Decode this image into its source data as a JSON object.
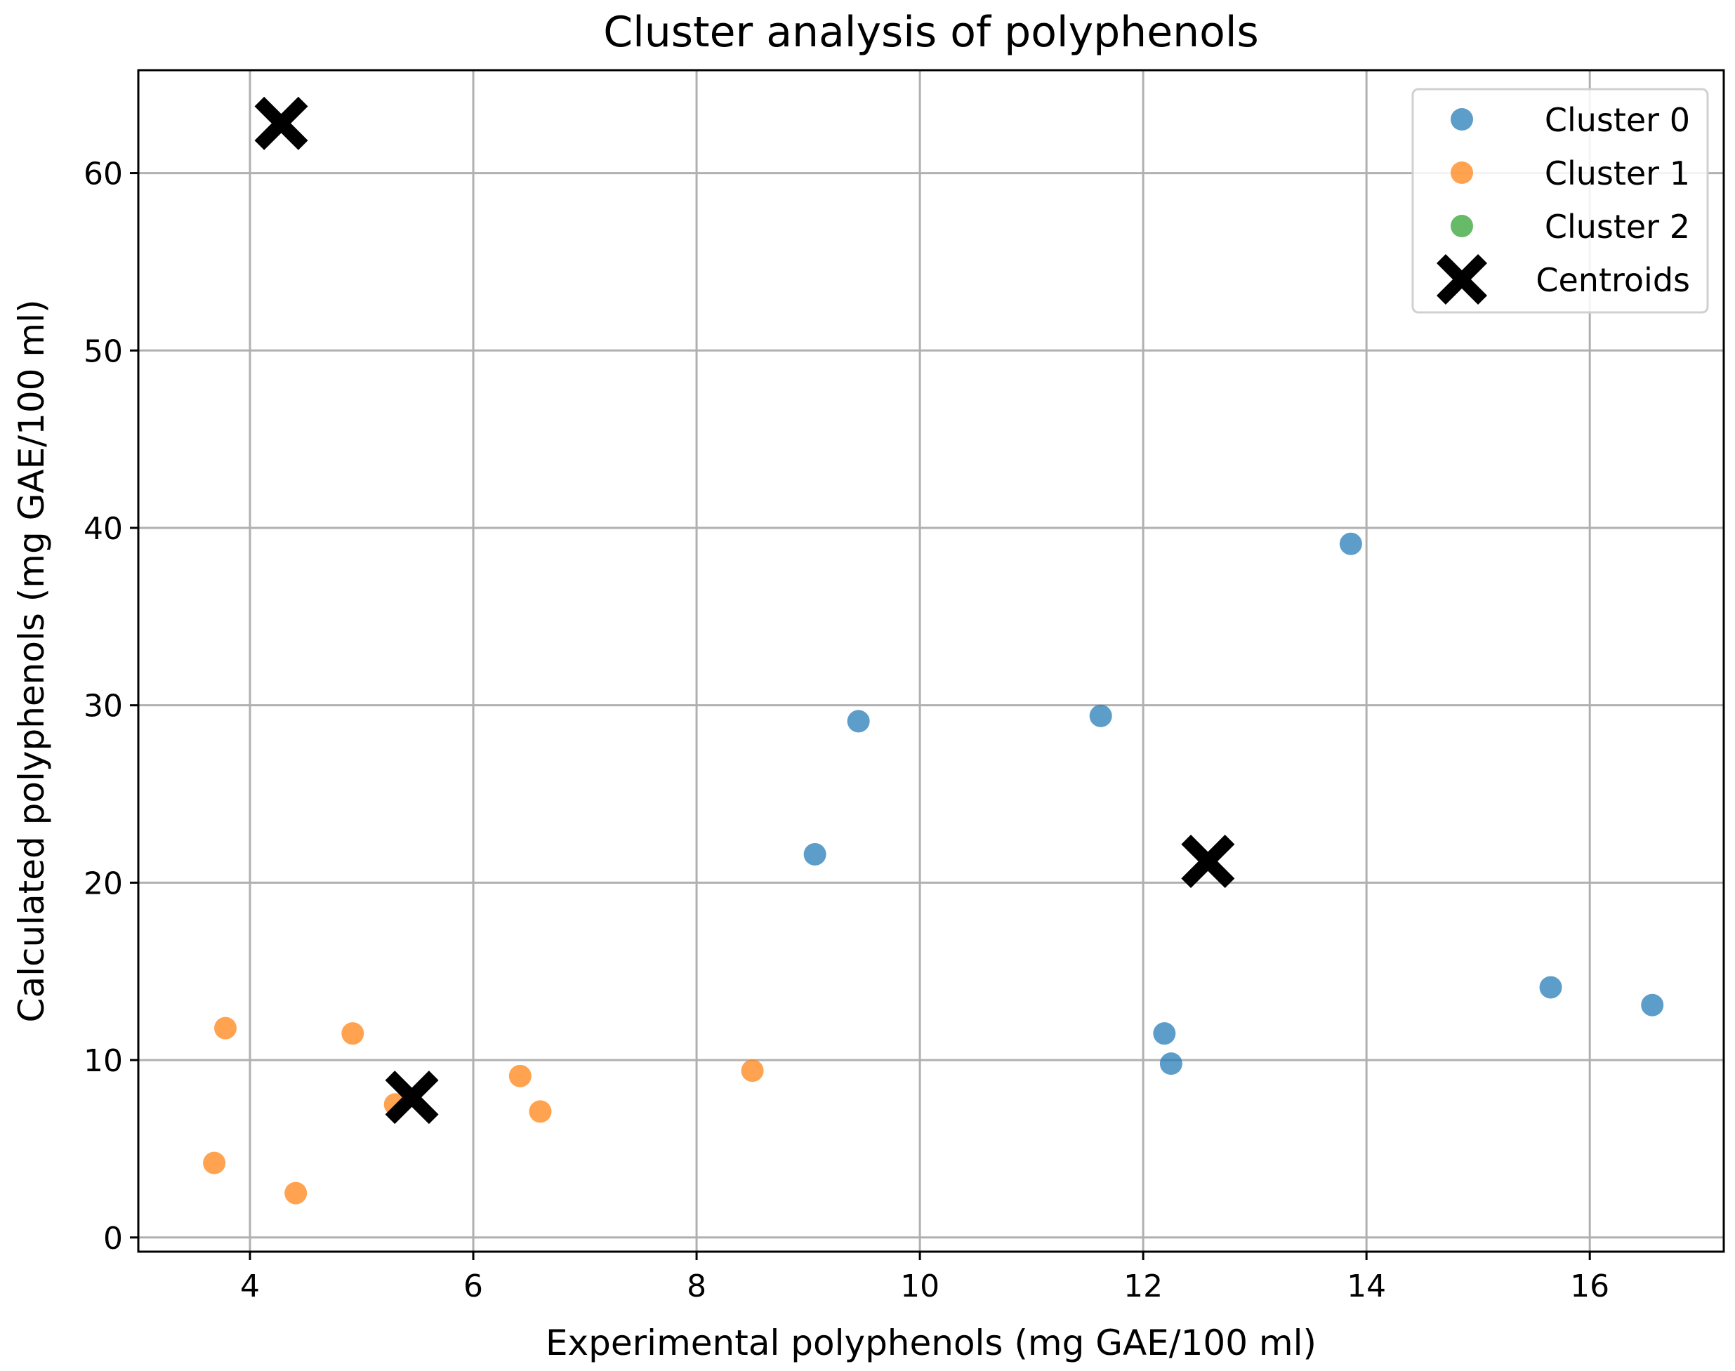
{
  "chart_data": {
    "type": "scatter",
    "title": "Cluster analysis of polyphenols",
    "xlabel": "Experimental polyphenols (mg GAE/100 ml)",
    "ylabel": "Calculated polyphenols (mg GAE/100 ml)",
    "xlim": [
      3.0,
      17.2
    ],
    "ylim": [
      -0.8,
      65.8
    ],
    "xticks": [
      4,
      6,
      8,
      10,
      12,
      14,
      16
    ],
    "yticks": [
      0,
      10,
      20,
      30,
      40,
      50,
      60
    ],
    "grid": true,
    "legend_position": "top-right",
    "series": [
      {
        "name": "Cluster 0",
        "color": "#1f77b4",
        "marker": "circle",
        "points": [
          [
            9.45,
            29.1
          ],
          [
            11.62,
            29.4
          ],
          [
            13.86,
            39.1
          ],
          [
            9.06,
            21.6
          ],
          [
            12.19,
            11.5
          ],
          [
            12.25,
            9.8
          ],
          [
            15.65,
            14.1
          ],
          [
            16.56,
            13.1
          ]
        ]
      },
      {
        "name": "Cluster 1",
        "color": "#ff7f0e",
        "marker": "circle",
        "points": [
          [
            3.78,
            11.8
          ],
          [
            4.92,
            11.5
          ],
          [
            3.68,
            4.2
          ],
          [
            4.41,
            2.5
          ],
          [
            6.42,
            9.1
          ],
          [
            6.6,
            7.1
          ],
          [
            8.5,
            9.4
          ],
          [
            5.3,
            7.5
          ]
        ]
      },
      {
        "name": "Cluster 2",
        "color": "#2ca02c",
        "marker": "circle",
        "points": []
      },
      {
        "name": "Centroids",
        "color": "#000000",
        "marker": "X",
        "points": [
          [
            4.28,
            62.8
          ],
          [
            5.45,
            7.9
          ],
          [
            12.58,
            21.2
          ]
        ]
      }
    ]
  }
}
